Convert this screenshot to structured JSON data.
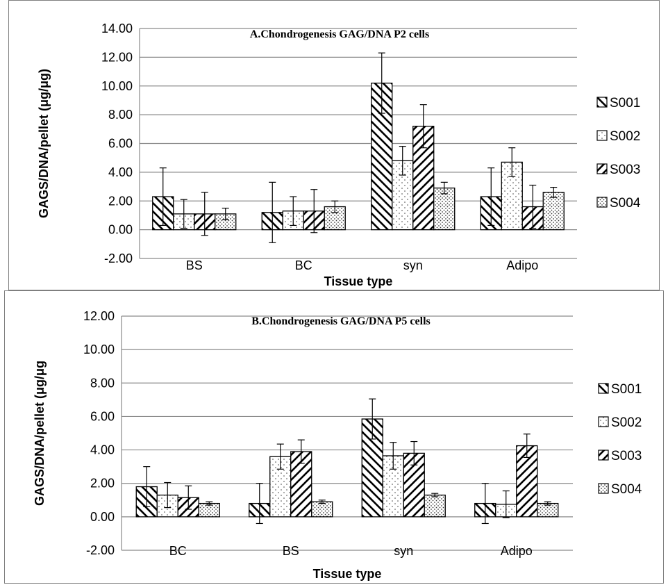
{
  "chart_data": [
    {
      "type": "bar",
      "title": "A.Chondrogenesis GAG/DNA P2 cells",
      "xlabel": "Tissue type",
      "ylabel": "GAGS/DNA/pellet (μg/μg)",
      "ylim": [
        -2,
        14
      ],
      "ytick_labels": [
        "-2.00",
        "0.00",
        "2.00",
        "4.00",
        "6.00",
        "8.00",
        "10.00",
        "12.00",
        "14.00"
      ],
      "grid": true,
      "legend_position": "right",
      "categories": [
        "BS",
        "BC",
        "syn",
        "Adipo"
      ],
      "series": [
        {
          "name": "S001",
          "pattern": "back-diagonal",
          "values": [
            2.3,
            1.2,
            10.2,
            2.3
          ],
          "errors": [
            2.0,
            2.1,
            2.1,
            2.0
          ]
        },
        {
          "name": "S002",
          "pattern": "sparse-dots",
          "values": [
            1.1,
            1.3,
            4.8,
            4.7
          ],
          "errors": [
            1.0,
            1.0,
            1.0,
            1.0
          ]
        },
        {
          "name": "S003",
          "pattern": "forward-diagonal",
          "values": [
            1.1,
            1.3,
            7.2,
            1.6
          ],
          "errors": [
            1.5,
            1.5,
            1.5,
            1.5
          ]
        },
        {
          "name": "S004",
          "pattern": "dense-dots",
          "values": [
            1.1,
            1.6,
            2.9,
            2.6
          ],
          "errors": [
            0.4,
            0.4,
            0.4,
            0.35
          ]
        }
      ]
    },
    {
      "type": "bar",
      "title": "B.Chondrogenesis GAG/DNA P5 cells",
      "xlabel": "Tissue type",
      "ylabel": "GAGS/DNA/pellet (μg/μg",
      "ylim": [
        -2,
        12
      ],
      "ytick_labels": [
        "-2.00",
        "0.00",
        "2.00",
        "4.00",
        "6.00",
        "8.00",
        "10.00",
        "12.00"
      ],
      "grid": true,
      "legend_position": "right",
      "categories": [
        "BC",
        "BS",
        "syn",
        "Adipo"
      ],
      "series": [
        {
          "name": "S001",
          "pattern": "back-diagonal",
          "values": [
            1.8,
            0.8,
            5.85,
            0.8
          ],
          "errors": [
            1.2,
            1.2,
            1.2,
            1.2
          ]
        },
        {
          "name": "S002",
          "pattern": "sparse-dots",
          "values": [
            1.3,
            3.6,
            3.65,
            0.75
          ],
          "errors": [
            0.75,
            0.75,
            0.8,
            0.8
          ]
        },
        {
          "name": "S003",
          "pattern": "forward-diagonal",
          "values": [
            1.15,
            3.9,
            3.8,
            4.25
          ],
          "errors": [
            0.7,
            0.7,
            0.7,
            0.7
          ]
        },
        {
          "name": "S004",
          "pattern": "dense-dots",
          "values": [
            0.8,
            0.9,
            1.3,
            0.8
          ],
          "errors": [
            0.1,
            0.1,
            0.1,
            0.1
          ]
        }
      ]
    }
  ]
}
